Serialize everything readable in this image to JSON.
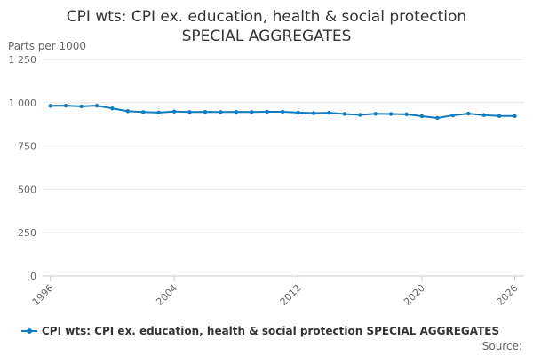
{
  "chart_data": {
    "type": "line",
    "title_line1": "CPI wts: CPI ex. education, health & social protection",
    "title_line2": "SPECIAL AGGREGATES",
    "ylabel": "Parts per 1000",
    "ylim": [
      0,
      1250
    ],
    "y_ticks": [
      0,
      250,
      500,
      750,
      1000,
      1250
    ],
    "y_tick_labels": [
      "0",
      "250",
      "500",
      "750",
      "1 000",
      "1 250"
    ],
    "x_ticks": [
      "1996",
      "2004",
      "2012",
      "2020",
      "2026"
    ],
    "grid": true,
    "legend_position": "bottom",
    "series": [
      {
        "name": "CPI wts: CPI ex. education, health & social protection SPECIAL AGGREGATES",
        "color": "#0f7cc0",
        "x": [
          1996,
          1997,
          1998,
          1999,
          2000,
          2001,
          2002,
          2003,
          2004,
          2005,
          2006,
          2007,
          2008,
          2009,
          2010,
          2011,
          2012,
          2013,
          2014,
          2015,
          2016,
          2017,
          2018,
          2019,
          2020,
          2021,
          2022,
          2023,
          2024,
          2025,
          2026
        ],
        "values": [
          982,
          983,
          979,
          983,
          967,
          951,
          946,
          943,
          949,
          946,
          947,
          946,
          947,
          946,
          948,
          948,
          943,
          940,
          942,
          935,
          930,
          936,
          935,
          933,
          922,
          912,
          927,
          937,
          929,
          923,
          923
        ]
      }
    ],
    "source_label": "Source:"
  }
}
